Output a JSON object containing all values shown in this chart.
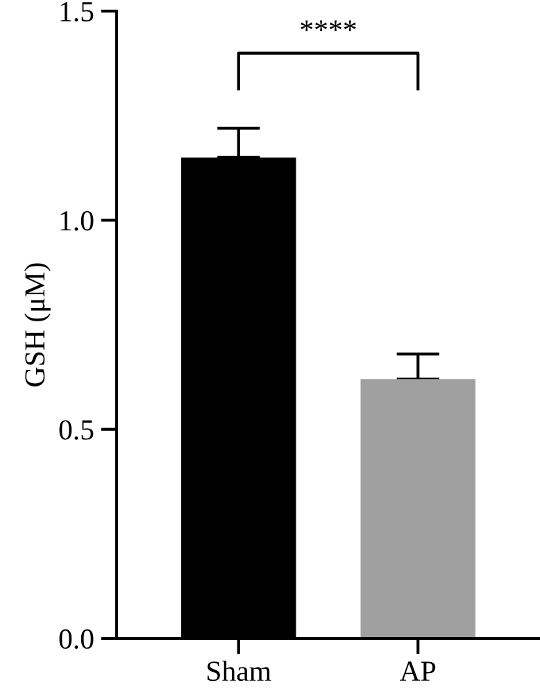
{
  "chart_data": {
    "type": "bar",
    "ylabel": "GSH (μM)",
    "categories": [
      "Sham",
      "AP"
    ],
    "values": [
      1.15,
      0.62
    ],
    "colors": [
      "#000000",
      "#a0a0a0"
    ],
    "errors": [
      [
        1.15,
        1.22
      ],
      [
        0.62,
        0.68
      ]
    ],
    "ylim": [
      0,
      1.5
    ],
    "yticks": [
      {
        "value": 0,
        "label": "0.0"
      },
      {
        "value": 0.5,
        "label": "0.5"
      },
      {
        "value": 1.0,
        "label": "1.0"
      },
      {
        "value": 1.5,
        "label": "1.5"
      }
    ],
    "annotations": [
      "****"
    ],
    "grid": false
  }
}
